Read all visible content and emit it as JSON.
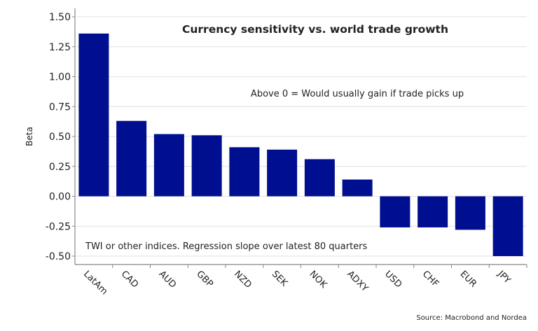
{
  "chart_data": {
    "type": "bar",
    "title": "Currency sensitivity vs. world trade growth",
    "annotations": [
      "Above 0 = Would usually gain if trade picks up",
      "TWI or other indices. Regression slope over latest 80 quarters"
    ],
    "source": "Source: Macrobond and Nordea",
    "ylabel": "Beta",
    "xlabel": "",
    "ylim": [
      -0.5,
      1.5
    ],
    "yticks": [
      "1.50",
      "1.25",
      "1.00",
      "0.75",
      "0.50",
      "0.25",
      "0.00",
      "-0.25",
      "-0.50"
    ],
    "grid": true,
    "categories": [
      "LatAm",
      "CAD",
      "AUD",
      "GBP",
      "NZD",
      "SEK",
      "NOK",
      "ADXY",
      "USD",
      "CHF",
      "EUR",
      "JPY"
    ],
    "values": [
      1.36,
      0.63,
      0.52,
      0.51,
      0.41,
      0.39,
      0.31,
      0.14,
      -0.26,
      -0.26,
      -0.28,
      -0.5
    ],
    "colors": {
      "bar": "#000f8f",
      "grid": "#e6e6e6",
      "axis": "#888888"
    }
  }
}
